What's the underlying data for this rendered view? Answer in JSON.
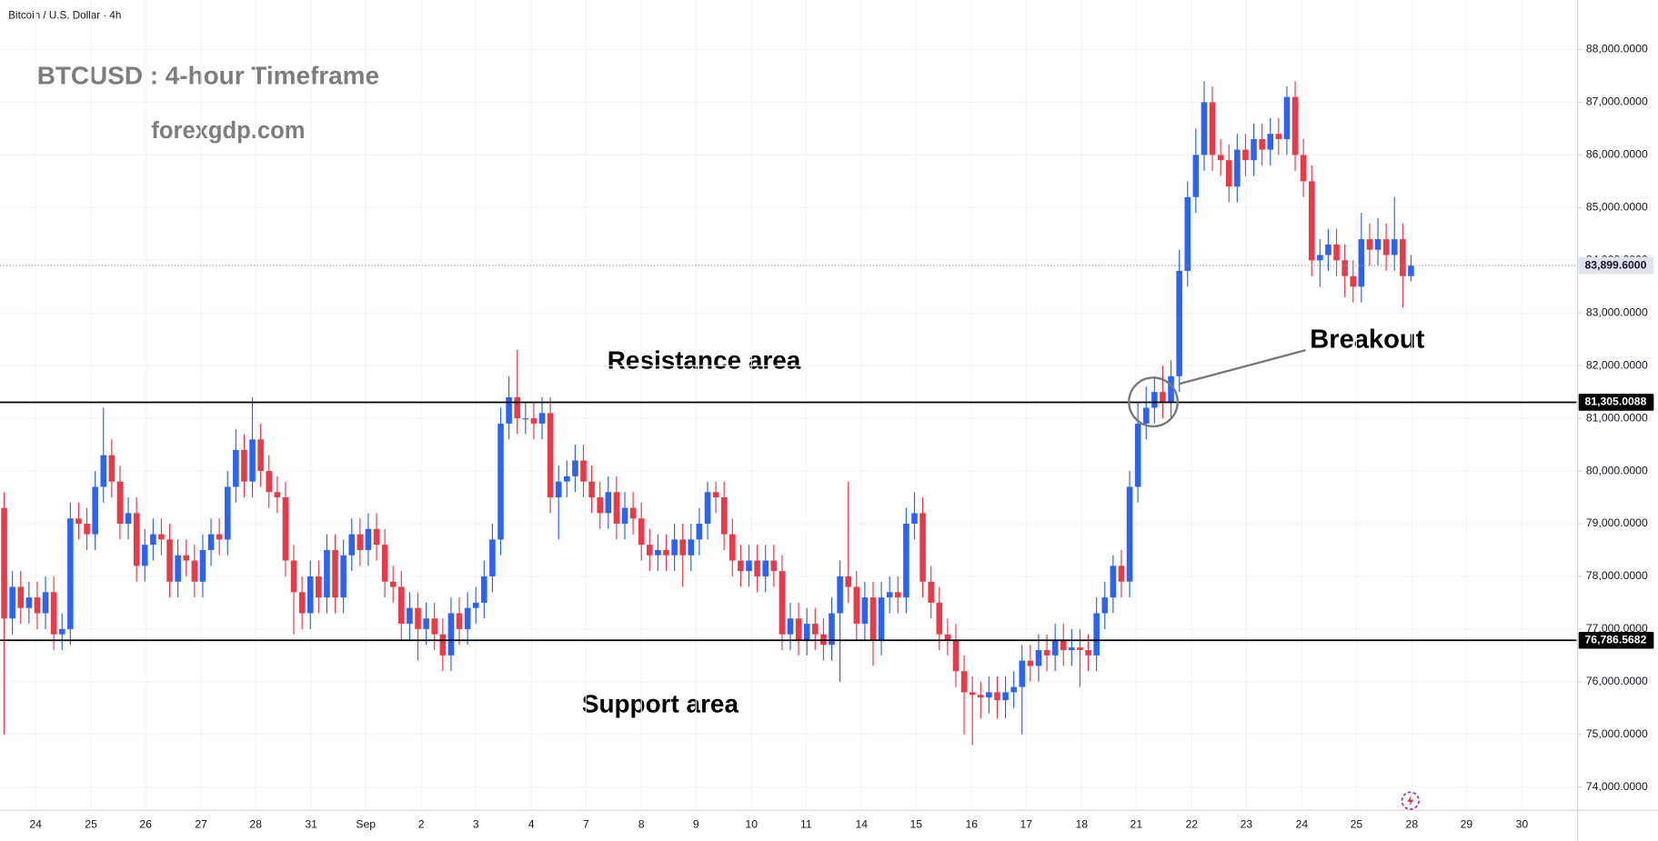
{
  "chart_data": {
    "type": "candlestick",
    "title": "Bitcoin / U.S. Dollar · 4h",
    "annotations": {
      "heading": "BTCUSD : 4-hour Timeframe",
      "site": "forexgdp.com",
      "resistance": "Resistance area",
      "support": "Support area",
      "breakout": "Breakout"
    },
    "up_color": "#2962ff",
    "down_color": "#f23645",
    "xlim": [
      -0.5,
      190
    ],
    "xticks": [
      {
        "value": 3.8,
        "label": "24"
      },
      {
        "value": 10.5,
        "label": "25"
      },
      {
        "value": 17.1,
        "label": "26"
      },
      {
        "value": 23.8,
        "label": "27"
      },
      {
        "value": 30.4,
        "label": "28"
      },
      {
        "value": 37.1,
        "label": "31"
      },
      {
        "value": 43.7,
        "label": "Sep"
      },
      {
        "value": 50.4,
        "label": "2"
      },
      {
        "value": 57.0,
        "label": "3"
      },
      {
        "value": 63.7,
        "label": "4"
      },
      {
        "value": 70.3,
        "label": "7"
      },
      {
        "value": 77.0,
        "label": "8"
      },
      {
        "value": 83.6,
        "label": "9"
      },
      {
        "value": 90.3,
        "label": "10"
      },
      {
        "value": 96.9,
        "label": "11"
      },
      {
        "value": 103.6,
        "label": "14"
      },
      {
        "value": 110.2,
        "label": "15"
      },
      {
        "value": 116.9,
        "label": "16"
      },
      {
        "value": 123.5,
        "label": "17"
      },
      {
        "value": 130.2,
        "label": "18"
      },
      {
        "value": 136.8,
        "label": "21"
      },
      {
        "value": 143.5,
        "label": "22"
      },
      {
        "value": 150.1,
        "label": "23"
      },
      {
        "value": 156.8,
        "label": "24"
      },
      {
        "value": 163.4,
        "label": "25"
      },
      {
        "value": 170.1,
        "label": "28"
      },
      {
        "value": 176.7,
        "label": "29"
      },
      {
        "value": 183.4,
        "label": "30"
      }
    ],
    "ylim": [
      73580,
      88940
    ],
    "yticks": [
      {
        "value": 74000,
        "label": "74,000.0000"
      },
      {
        "value": 75000,
        "label": "75,000.0000"
      },
      {
        "value": 76000,
        "label": "76,000.0000"
      },
      {
        "value": 77000,
        "label": "77,000.0000"
      },
      {
        "value": 78000,
        "label": "78,000.0000"
      },
      {
        "value": 79000,
        "label": "79,000.0000"
      },
      {
        "value": 80000,
        "label": "80,000.0000"
      },
      {
        "value": 81000,
        "label": "81,000.0000"
      },
      {
        "value": 82000,
        "label": "82,000.0000"
      },
      {
        "value": 83000,
        "label": "83,000.0000"
      },
      {
        "value": 84000,
        "label": "84,000.0000"
      },
      {
        "value": 85000,
        "label": "85,000.0000"
      },
      {
        "value": 86000,
        "label": "86,000.0000"
      },
      {
        "value": 87000,
        "label": "87,000.0000"
      },
      {
        "value": 88000,
        "label": "88,000.0000"
      }
    ],
    "levels": [
      {
        "value": 81305.0088,
        "label": "81,305.0088",
        "style": "solid"
      },
      {
        "value": 76786.5682,
        "label": "76,786.5682",
        "style": "solid"
      },
      {
        "value": 83899.6,
        "label": "83,899.6000",
        "style": "dotted"
      }
    ],
    "open": [
      79300,
      77200,
      77800,
      77400,
      77600,
      77300,
      77700,
      76900,
      77000,
      79100,
      79000,
      78800,
      79700,
      80300,
      79800,
      79000,
      79200,
      78200,
      78600,
      78800,
      78700,
      77900,
      78400,
      78300,
      77900,
      78500,
      78800,
      78700,
      79700,
      80400,
      79800,
      80600,
      80000,
      79600,
      79500,
      78300,
      77700,
      77300,
      78000,
      77600,
      78500,
      77600,
      78400,
      78800,
      78500,
      78900,
      78600,
      77900,
      77800,
      77100,
      77400,
      77000,
      77200,
      76900,
      76500,
      77300,
      77000,
      77400,
      77500,
      78000,
      78700,
      80900,
      81400,
      81000,
      81000,
      80900,
      81100,
      79500,
      79800,
      79900,
      80200,
      79800,
      79500,
      79200,
      79600,
      79000,
      79300,
      79100,
      78600,
      78400,
      78500,
      78400,
      78700,
      78400,
      78700,
      79000,
      79600,
      79500,
      78800,
      78300,
      78100,
      78300,
      78000,
      78300,
      78100,
      76900,
      77200,
      76800,
      77100,
      76900,
      76700,
      77300,
      78000,
      77800,
      77100,
      77600,
      76800,
      77600,
      77700,
      77600,
      79000,
      79200,
      77900,
      77500,
      76900,
      76800,
      76200,
      75800,
      75750,
      75700,
      75800,
      75650,
      75800,
      75900,
      76400,
      76300,
      76600,
      76500,
      76800,
      76600,
      76650,
      76600,
      76500,
      77300,
      77600,
      78200,
      77900,
      79700,
      80900,
      81200,
      81500,
      81300,
      81800,
      83800,
      85200,
      86000,
      87000,
      86000,
      85900,
      85400,
      86100,
      85900,
      86300,
      86100,
      86400,
      86300,
      87100,
      86000,
      85500,
      84000,
      84100,
      84300,
      84000,
      83700,
      83500,
      84400,
      84200,
      84400,
      84100,
      84400,
      83700
    ],
    "high": [
      79600,
      78100,
      78100,
      77900,
      77900,
      78000,
      78000,
      77300,
      79400,
      79400,
      79300,
      80000,
      81200,
      80600,
      80100,
      79500,
      79500,
      78900,
      79100,
      79100,
      79000,
      78700,
      78700,
      78600,
      78800,
      79100,
      79100,
      80000,
      80800,
      80700,
      81400,
      80900,
      80300,
      79900,
      79800,
      78600,
      78000,
      78300,
      78300,
      78800,
      78800,
      78700,
      79100,
      79100,
      79200,
      79200,
      78900,
      78200,
      78100,
      77700,
      77700,
      77500,
      77500,
      77200,
      77600,
      77600,
      77700,
      77800,
      78300,
      79000,
      81200,
      81800,
      82300,
      81300,
      81300,
      81400,
      81400,
      80100,
      80200,
      80500,
      80500,
      80100,
      79800,
      79900,
      79900,
      79600,
      79600,
      79400,
      78900,
      78800,
      78800,
      79000,
      79000,
      79000,
      79300,
      79800,
      79800,
      79800,
      79100,
      78600,
      78600,
      78600,
      78600,
      78600,
      78400,
      77500,
      77500,
      77400,
      77400,
      77200,
      77600,
      78300,
      79800,
      78100,
      77900,
      77900,
      77900,
      78000,
      78000,
      79300,
      79600,
      79500,
      78200,
      77800,
      77200,
      77100,
      76500,
      76100,
      76000,
      76100,
      76100,
      76100,
      76200,
      76700,
      76700,
      76900,
      76900,
      77100,
      77100,
      77000,
      77000,
      76900,
      77600,
      77900,
      78400,
      78500,
      80000,
      81300,
      81600,
      81800,
      82000,
      82100,
      84200,
      85500,
      86500,
      87400,
      87300,
      86300,
      86200,
      86400,
      86400,
      86600,
      86600,
      86700,
      86700,
      87300,
      87400,
      86300,
      85800,
      84400,
      84600,
      84600,
      84300,
      84000,
      84900,
      84700,
      84800,
      84700,
      85200,
      84700,
      84100
    ],
    "low": [
      75000,
      76900,
      77100,
      77100,
      77000,
      77000,
      76600,
      76600,
      76700,
      78700,
      78500,
      78500,
      79400,
      79500,
      78700,
      78700,
      77900,
      77900,
      78300,
      78400,
      77600,
      77600,
      78000,
      77600,
      77600,
      78200,
      78400,
      78400,
      79400,
      79500,
      79500,
      79700,
      79300,
      79200,
      78000,
      76900,
      77000,
      77000,
      77300,
      77300,
      77300,
      77300,
      78100,
      78200,
      78200,
      78300,
      77600,
      77500,
      76800,
      76800,
      76400,
      76700,
      76600,
      76200,
      76200,
      76700,
      76700,
      77100,
      77200,
      77700,
      78400,
      80600,
      80700,
      80700,
      80600,
      80600,
      79200,
      78700,
      79500,
      79600,
      79500,
      79200,
      78900,
      78900,
      78700,
      78700,
      78800,
      78300,
      78100,
      78100,
      78100,
      78100,
      77800,
      78100,
      78400,
      78700,
      79200,
      78500,
      78000,
      77800,
      77800,
      77700,
      77700,
      77800,
      76600,
      76600,
      76500,
      76500,
      76600,
      76400,
      76400,
      76000,
      77500,
      76800,
      76800,
      76300,
      76500,
      77300,
      77300,
      77300,
      78700,
      77600,
      77200,
      76600,
      76500,
      75900,
      75000,
      74800,
      75300,
      75400,
      75300,
      75300,
      75500,
      75000,
      76000,
      76000,
      76200,
      76200,
      76300,
      76300,
      75900,
      76200,
      76200,
      77000,
      77300,
      77600,
      77600,
      79400,
      80600,
      80900,
      81000,
      81000,
      81500,
      83500,
      84900,
      85700,
      85700,
      85600,
      85100,
      85100,
      85600,
      85600,
      85800,
      85800,
      86000,
      86000,
      85700,
      85200,
      83700,
      83500,
      83800,
      83700,
      83300,
      83200,
      83200,
      83900,
      83900,
      83800,
      83800,
      83100,
      83600
    ],
    "close": [
      77200,
      77800,
      77400,
      77600,
      77300,
      77700,
      76900,
      77000,
      79100,
      79000,
      78800,
      79700,
      80300,
      79800,
      79000,
      79200,
      78200,
      78600,
      78800,
      78700,
      77900,
      78400,
      78300,
      77900,
      78500,
      78800,
      78700,
      79700,
      80400,
      79800,
      80600,
      80000,
      79600,
      79500,
      78300,
      77700,
      77300,
      78000,
      77600,
      78500,
      77600,
      78400,
      78800,
      78500,
      78900,
      78600,
      77900,
      77800,
      77100,
      77400,
      77000,
      77200,
      76900,
      76500,
      77300,
      77000,
      77400,
      77500,
      78000,
      78700,
      80900,
      81400,
      81000,
      81000,
      80900,
      81100,
      79500,
      79800,
      79900,
      80200,
      79800,
      79500,
      79200,
      79600,
      79000,
      79300,
      79100,
      78600,
      78400,
      78500,
      78400,
      78700,
      78400,
      78700,
      79000,
      79600,
      79500,
      78800,
      78300,
      78100,
      78300,
      78000,
      78300,
      78100,
      76900,
      77200,
      76800,
      77100,
      76900,
      76700,
      77300,
      78000,
      77800,
      77100,
      77600,
      76800,
      77600,
      77700,
      77600,
      79000,
      79200,
      77900,
      77500,
      76900,
      76800,
      76200,
      75800,
      75750,
      75700,
      75800,
      75650,
      75800,
      75900,
      76400,
      76300,
      76600,
      76500,
      76800,
      76600,
      76650,
      76600,
      76500,
      77300,
      77600,
      78200,
      77900,
      79700,
      80900,
      81200,
      81500,
      81300,
      81800,
      83800,
      85200,
      86000,
      87000,
      86000,
      85900,
      85400,
      86100,
      85900,
      86300,
      86100,
      86400,
      86300,
      87100,
      86000,
      85500,
      84000,
      84100,
      84300,
      84000,
      83700,
      83500,
      84400,
      84200,
      84400,
      84100,
      84400,
      83700,
      83899.6
    ]
  }
}
